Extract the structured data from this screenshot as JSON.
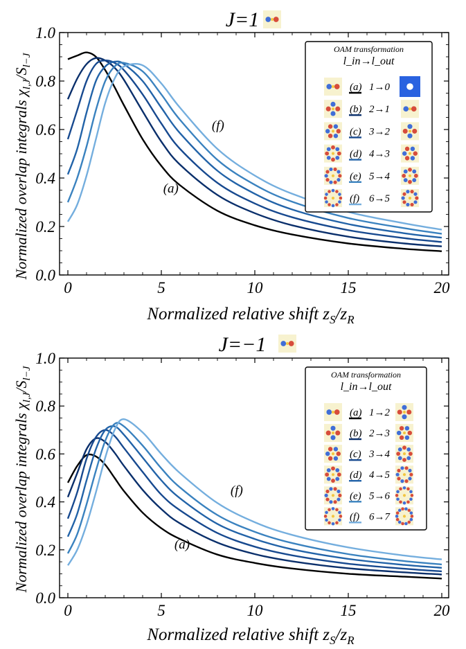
{
  "chart_data": [
    {
      "type": "line",
      "title": "J=1",
      "xlabel": "Normalized relative shift z_S/z_R",
      "ylabel": "Normalized overlap integrals χ_{l,J}/S_{l−J}",
      "xlim": [
        0,
        20
      ],
      "ylim": [
        0,
        1.0
      ],
      "xticks": [
        "0",
        "5",
        "10",
        "15",
        "20"
      ],
      "yticks": [
        "0.0",
        "0.2",
        "0.4",
        "0.6",
        "0.8",
        "1.0"
      ],
      "grid": false,
      "legend_title_1": "OAM transformation",
      "legend_title_2": "l_in→l_out",
      "legend_position": "top-right",
      "annotations": [
        {
          "text": "(f)",
          "x": 7.7,
          "y": 0.6
        },
        {
          "text": "(a)",
          "x": 5.1,
          "y": 0.34
        }
      ],
      "x": [
        0,
        0.5,
        1,
        1.5,
        2,
        2.5,
        3,
        4,
        5,
        6,
        8,
        10,
        12,
        15,
        18,
        20
      ],
      "series": [
        {
          "label": "(a)",
          "transform": "1→0",
          "color": "#000000",
          "values": [
            0.89,
            0.905,
            0.918,
            0.9,
            0.845,
            0.775,
            0.7,
            0.56,
            0.45,
            0.37,
            0.265,
            0.205,
            0.167,
            0.13,
            0.108,
            0.098
          ]
        },
        {
          "label": "(b)",
          "transform": "2→1",
          "color": "#0a2f6b",
          "values": [
            0.725,
            0.81,
            0.87,
            0.895,
            0.885,
            0.855,
            0.805,
            0.675,
            0.55,
            0.455,
            0.33,
            0.255,
            0.205,
            0.158,
            0.13,
            0.118
          ]
        },
        {
          "label": "(c)",
          "transform": "3→2",
          "color": "#17498f",
          "values": [
            0.56,
            0.68,
            0.8,
            0.87,
            0.885,
            0.875,
            0.845,
            0.745,
            0.625,
            0.52,
            0.38,
            0.295,
            0.238,
            0.185,
            0.152,
            0.136
          ]
        },
        {
          "label": "(d)",
          "transform": "4→3",
          "color": "#2263a8",
          "values": [
            0.415,
            0.52,
            0.67,
            0.8,
            0.86,
            0.88,
            0.87,
            0.8,
            0.69,
            0.585,
            0.43,
            0.335,
            0.27,
            0.21,
            0.172,
            0.154
          ]
        },
        {
          "label": "(e)",
          "transform": "5→4",
          "color": "#3a82bf",
          "values": [
            0.3,
            0.4,
            0.53,
            0.68,
            0.8,
            0.86,
            0.875,
            0.84,
            0.745,
            0.64,
            0.475,
            0.372,
            0.302,
            0.235,
            0.193,
            0.17
          ]
        },
        {
          "label": "(f)",
          "transform": "6→5",
          "color": "#74aede",
          "values": [
            0.22,
            0.29,
            0.41,
            0.56,
            0.71,
            0.81,
            0.86,
            0.865,
            0.79,
            0.69,
            0.52,
            0.41,
            0.335,
            0.26,
            0.213,
            0.187
          ]
        }
      ]
    },
    {
      "type": "line",
      "title": "J=−1",
      "xlabel": "Normalized relative shift z_S/z_R",
      "ylabel": "Normalized overlap integrals χ_{l,J}/S_{l−J}",
      "xlim": [
        0,
        20
      ],
      "ylim": [
        0,
        1.0
      ],
      "xticks": [
        "0",
        "5",
        "10",
        "15",
        "20"
      ],
      "yticks": [
        "0.0",
        "0.2",
        "0.4",
        "0.6",
        "0.8",
        "1.0"
      ],
      "grid": false,
      "legend_title_1": "OAM transformation",
      "legend_title_2": "l_in→l_out",
      "legend_position": "top-right",
      "annotations": [
        {
          "text": "(f)",
          "x": 8.7,
          "y": 0.43
        },
        {
          "text": "(a)",
          "x": 5.7,
          "y": 0.205
        }
      ],
      "x": [
        0,
        0.5,
        1,
        1.5,
        2,
        2.5,
        3,
        4,
        5,
        6,
        8,
        10,
        12,
        15,
        18,
        20
      ],
      "series": [
        {
          "label": "(a)",
          "transform": "1→2",
          "color": "#000000",
          "values": [
            0.48,
            0.55,
            0.595,
            0.59,
            0.555,
            0.5,
            0.445,
            0.355,
            0.29,
            0.245,
            0.18,
            0.145,
            0.122,
            0.1,
            0.088,
            0.08
          ]
        },
        {
          "label": "(b)",
          "transform": "2→3",
          "color": "#0a2f6b",
          "values": [
            0.42,
            0.52,
            0.62,
            0.665,
            0.65,
            0.605,
            0.55,
            0.45,
            0.37,
            0.31,
            0.23,
            0.182,
            0.152,
            0.123,
            0.106,
            0.097
          ]
        },
        {
          "label": "(c)",
          "transform": "3→4",
          "color": "#17498f",
          "values": [
            0.33,
            0.44,
            0.58,
            0.67,
            0.7,
            0.675,
            0.625,
            0.525,
            0.43,
            0.365,
            0.27,
            0.213,
            0.177,
            0.142,
            0.121,
            0.11
          ]
        },
        {
          "label": "(d)",
          "transform": "4→5",
          "color": "#2263a8",
          "values": [
            0.255,
            0.35,
            0.49,
            0.62,
            0.7,
            0.715,
            0.68,
            0.585,
            0.49,
            0.415,
            0.308,
            0.245,
            0.202,
            0.162,
            0.137,
            0.125
          ]
        },
        {
          "label": "(e)",
          "transform": "5→6",
          "color": "#3a82bf",
          "values": [
            0.185,
            0.265,
            0.39,
            0.53,
            0.655,
            0.725,
            0.715,
            0.635,
            0.54,
            0.46,
            0.345,
            0.275,
            0.228,
            0.182,
            0.153,
            0.139
          ]
        },
        {
          "label": "(f)",
          "transform": "6→7",
          "color": "#74aede",
          "values": [
            0.135,
            0.2,
            0.305,
            0.44,
            0.585,
            0.7,
            0.745,
            0.69,
            0.6,
            0.52,
            0.395,
            0.315,
            0.262,
            0.21,
            0.176,
            0.16
          ]
        }
      ]
    }
  ]
}
